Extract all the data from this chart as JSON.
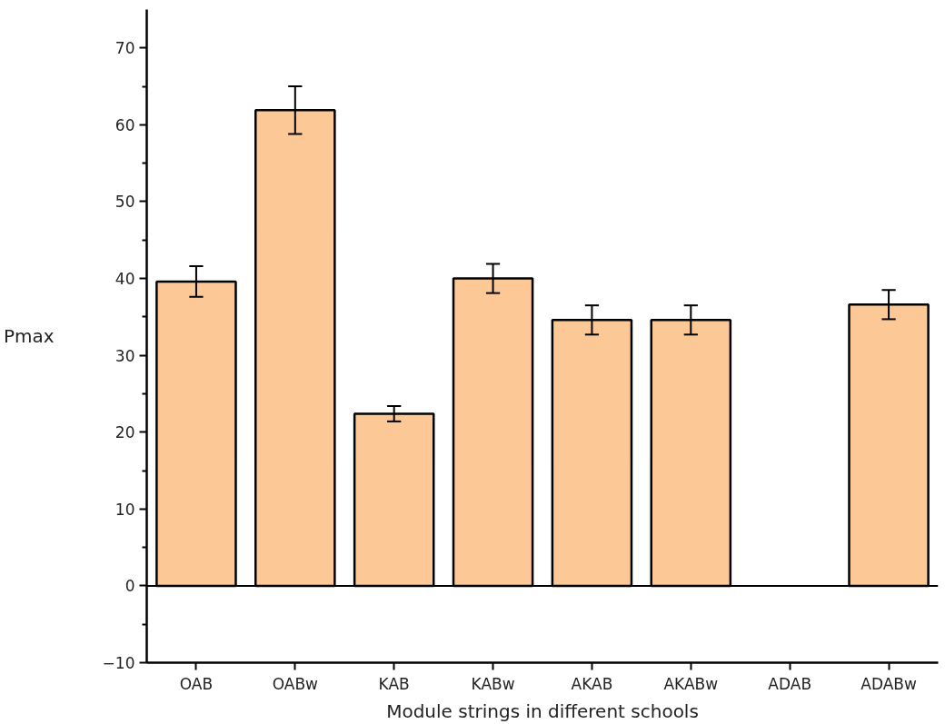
{
  "chart_data": {
    "type": "bar",
    "xlabel": "Module strings in different schools",
    "ylabel": "Pmax",
    "categories": [
      "OAB",
      "OABw",
      "KAB",
      "KABw",
      "AKAB",
      "AKABw",
      "ADAB",
      "ADABw"
    ],
    "values": [
      39.6,
      61.9,
      22.4,
      40.0,
      34.6,
      34.6,
      null,
      36.6
    ],
    "errors": [
      2.0,
      3.1,
      1.0,
      1.9,
      1.9,
      1.9,
      null,
      1.9
    ],
    "color": "#fbc896",
    "ylim": [
      -10,
      75
    ],
    "yticks": [
      -10,
      0,
      10,
      20,
      30,
      40,
      50,
      60,
      70
    ],
    "ref_lines": [
      {
        "axis": "y",
        "value": 0,
        "label": null
      }
    ],
    "grid": false
  }
}
